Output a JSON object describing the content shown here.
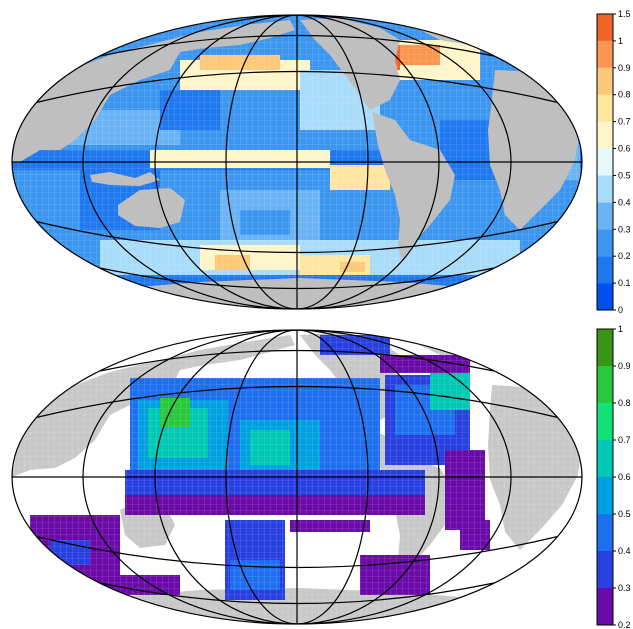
{
  "panels": [
    {
      "id": "top",
      "colorbar": {
        "ticks": [
          "0",
          "0.1",
          "0.2",
          "0.3",
          "0.4",
          "0.5",
          "0.6",
          "0.7",
          "0.8",
          "0.9",
          "1",
          "1.5"
        ],
        "colors": [
          "#0050f0",
          "#1e78f0",
          "#3c96f0",
          "#6ab4f5",
          "#a8dcfa",
          "#e6f8fa",
          "#fff5c8",
          "#ffe6a0",
          "#fdc878",
          "#fa9650",
          "#f06428"
        ]
      },
      "land_color": "#bfbfbf",
      "missing_color": "#ffffff"
    },
    {
      "id": "bottom",
      "colorbar": {
        "ticks": [
          "0.2",
          "0.3",
          "0.4",
          "0.5",
          "0.6",
          "0.7",
          "0.8",
          "0.9",
          "1"
        ],
        "colors": [
          "#6a0aa8",
          "#2840e0",
          "#1e6ef0",
          "#00a0e0",
          "#00c8b4",
          "#14e078",
          "#28c83c",
          "#389614"
        ]
      },
      "land_color": "#c8c8c8",
      "missing_color": "#ffffff"
    }
  ]
}
